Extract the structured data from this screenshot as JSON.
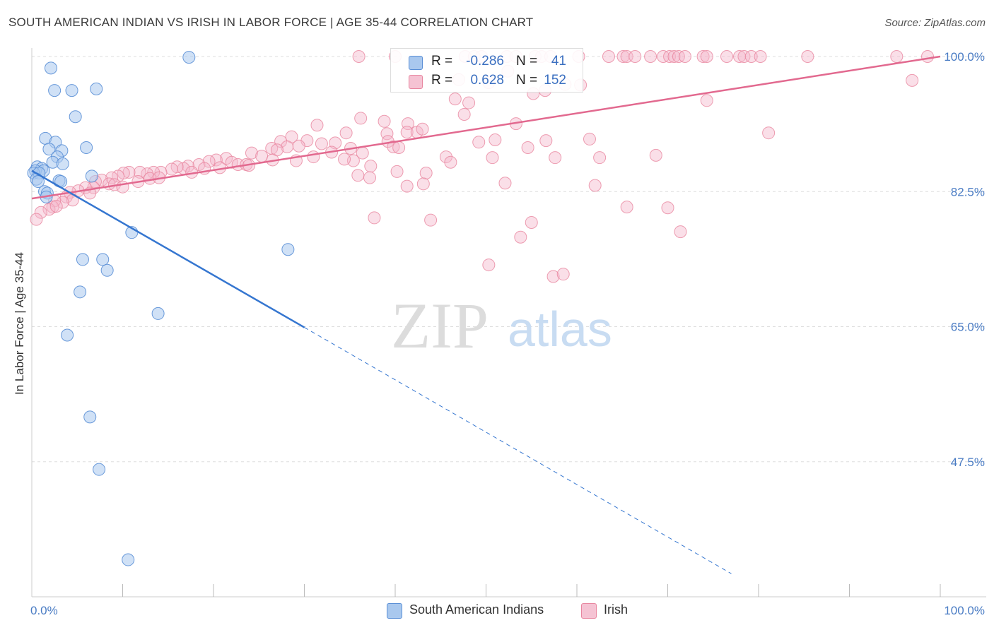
{
  "title": "SOUTH AMERICAN INDIAN VS IRISH IN LABOR FORCE | AGE 35-44 CORRELATION CHART",
  "source": "Source: ZipAtlas.com",
  "watermark": {
    "zip": "ZIP",
    "atlas": "atlas"
  },
  "legend": {
    "rows": [
      {
        "r_label": "R =",
        "r_value": "-0.286",
        "n_label": "N =",
        "n_value": "41"
      },
      {
        "r_label": "R =",
        "r_value": "0.628",
        "n_label": "N =",
        "n_value": "152"
      }
    ]
  },
  "bottom_legend": [
    "South American Indians",
    "Irish"
  ],
  "colors": {
    "blue_fill": "#a9c8ee",
    "blue_stroke": "#5a8fd6",
    "blue_line": "#3576d0",
    "pink_fill": "#f5b8cb",
    "pink_stroke": "#e8869f",
    "pink_line": "#e2698f",
    "tick_text": "#4a7cc4",
    "grid": "#dedede"
  },
  "chart_data": {
    "type": "scatter",
    "title": "SOUTH AMERICAN INDIAN VS IRISH IN LABOR FORCE | AGE 35-44 CORRELATION CHART",
    "xlabel": "",
    "ylabel": "In Labor Force | Age 35-44",
    "xlim": [
      0,
      100
    ],
    "ylim": [
      30,
      100
    ],
    "x_tick_labels": [
      "0.0%",
      "100.0%"
    ],
    "y_ticks": [
      47.5,
      65.0,
      82.5,
      100.0
    ],
    "y_tick_labels": [
      "47.5%",
      "65.0%",
      "82.5%",
      "100.0%"
    ],
    "grid": true,
    "series": [
      {
        "name": "South American Indians",
        "r": -0.286,
        "n": 41,
        "trend": {
          "x_start": 0,
          "y_start": 85.2,
          "x_solid_end": 30,
          "y_solid_end": 64.9,
          "x_dash_end": 77,
          "y_dash_end": 33.0
        },
        "points": [
          [
            17.3,
            99.9
          ],
          [
            2.1,
            98.5
          ],
          [
            2.5,
            95.6
          ],
          [
            4.4,
            95.6
          ],
          [
            7.1,
            95.8
          ],
          [
            4.8,
            92.2
          ],
          [
            1.5,
            89.4
          ],
          [
            2.6,
            88.9
          ],
          [
            1.9,
            88.0
          ],
          [
            3.3,
            87.8
          ],
          [
            6.0,
            88.2
          ],
          [
            2.8,
            87.0
          ],
          [
            2.3,
            86.3
          ],
          [
            3.4,
            86.1
          ],
          [
            0.6,
            85.7
          ],
          [
            1.1,
            85.5
          ],
          [
            0.4,
            85.2
          ],
          [
            1.3,
            85.2
          ],
          [
            0.2,
            84.9
          ],
          [
            0.8,
            84.9
          ],
          [
            0.5,
            84.1
          ],
          [
            0.7,
            83.8
          ],
          [
            3.0,
            83.9
          ],
          [
            3.2,
            83.8
          ],
          [
            6.6,
            84.5
          ],
          [
            1.4,
            82.5
          ],
          [
            1.7,
            82.3
          ],
          [
            1.6,
            81.8
          ],
          [
            11.0,
            77.2
          ],
          [
            28.2,
            75.0
          ],
          [
            5.6,
            73.7
          ],
          [
            7.8,
            73.7
          ],
          [
            8.3,
            72.3
          ],
          [
            5.3,
            69.5
          ],
          [
            13.9,
            66.7
          ],
          [
            3.9,
            63.9
          ],
          [
            6.4,
            53.3
          ],
          [
            7.4,
            46.5
          ],
          [
            10.6,
            34.8
          ]
        ]
      },
      {
        "name": "Irish",
        "r": 0.628,
        "n": 152,
        "trend": {
          "x_start": 0,
          "y_start": 81.6,
          "x_end": 100,
          "y_end": 100.0
        },
        "points": [
          [
            36,
            100
          ],
          [
            40,
            100
          ],
          [
            47.7,
            100
          ],
          [
            48.7,
            100
          ],
          [
            49.5,
            100
          ],
          [
            52.3,
            100
          ],
          [
            53.3,
            100
          ],
          [
            55.4,
            100
          ],
          [
            56.1,
            100
          ],
          [
            57.1,
            100
          ],
          [
            60.2,
            100
          ],
          [
            63.5,
            100
          ],
          [
            65.1,
            100
          ],
          [
            65.5,
            100
          ],
          [
            66.4,
            100
          ],
          [
            68.1,
            100
          ],
          [
            69.5,
            100
          ],
          [
            70.2,
            100
          ],
          [
            70.7,
            100
          ],
          [
            71.2,
            100
          ],
          [
            71.9,
            100
          ],
          [
            73.9,
            100
          ],
          [
            74.3,
            100
          ],
          [
            76.5,
            100
          ],
          [
            77.9,
            100
          ],
          [
            78.4,
            100
          ],
          [
            79.2,
            100
          ],
          [
            80.2,
            100
          ],
          [
            85.4,
            100
          ],
          [
            95.2,
            100
          ],
          [
            98.6,
            100
          ],
          [
            52.4,
            98.1
          ],
          [
            47.0,
            97.0
          ],
          [
            50.3,
            96.6
          ],
          [
            58.7,
            96.4
          ],
          [
            56.5,
            95.6
          ],
          [
            60.4,
            96.3
          ],
          [
            96.9,
            96.9
          ],
          [
            55.2,
            95.2
          ],
          [
            46.6,
            94.5
          ],
          [
            48.1,
            94.0
          ],
          [
            74.3,
            94.3
          ],
          [
            47.6,
            92.5
          ],
          [
            53.3,
            91.3
          ],
          [
            36.2,
            92.0
          ],
          [
            38.8,
            91.6
          ],
          [
            41.4,
            91.3
          ],
          [
            31.4,
            91.1
          ],
          [
            34.6,
            90.1
          ],
          [
            39.1,
            90.0
          ],
          [
            41.3,
            90.2
          ],
          [
            42.4,
            90.2
          ],
          [
            43.0,
            90.6
          ],
          [
            81.1,
            90.1
          ],
          [
            28.6,
            89.6
          ],
          [
            30.3,
            89.1
          ],
          [
            31.9,
            88.7
          ],
          [
            33.4,
            88.8
          ],
          [
            39.2,
            89.0
          ],
          [
            39.8,
            88.3
          ],
          [
            51.0,
            89.2
          ],
          [
            49.2,
            88.9
          ],
          [
            56.6,
            89.1
          ],
          [
            61.4,
            89.3
          ],
          [
            27.4,
            89.0
          ],
          [
            28.1,
            88.3
          ],
          [
            29.4,
            88.4
          ],
          [
            35.1,
            88.1
          ],
          [
            40.4,
            88.2
          ],
          [
            54.6,
            88.2
          ],
          [
            26.4,
            88.1
          ],
          [
            27.0,
            87.9
          ],
          [
            31.0,
            87.0
          ],
          [
            33.0,
            87.6
          ],
          [
            36.4,
            87.5
          ],
          [
            35.4,
            86.5
          ],
          [
            45.6,
            87.0
          ],
          [
            50.7,
            86.9
          ],
          [
            57.6,
            86.9
          ],
          [
            62.5,
            86.9
          ],
          [
            68.7,
            87.2
          ],
          [
            24.2,
            87.5
          ],
          [
            25.3,
            87.1
          ],
          [
            21.4,
            86.8
          ],
          [
            20.3,
            86.6
          ],
          [
            19.5,
            86.4
          ],
          [
            22.0,
            86.3
          ],
          [
            22.7,
            86.0
          ],
          [
            23.6,
            86.0
          ],
          [
            18.4,
            86.0
          ],
          [
            17.2,
            85.8
          ],
          [
            16.7,
            85.5
          ],
          [
            16.0,
            85.7
          ],
          [
            15.4,
            85.4
          ],
          [
            14.2,
            85.0
          ],
          [
            13.4,
            85.0
          ],
          [
            12.7,
            84.8
          ],
          [
            11.9,
            85.0
          ],
          [
            13.0,
            84.2
          ],
          [
            10.7,
            85.0
          ],
          [
            10.1,
            84.9
          ],
          [
            9.5,
            84.5
          ],
          [
            8.8,
            84.3
          ],
          [
            7.7,
            84.0
          ],
          [
            7.0,
            83.8
          ],
          [
            6.8,
            83.0
          ],
          [
            8.5,
            83.5
          ],
          [
            9.1,
            83.4
          ],
          [
            10.0,
            83.1
          ],
          [
            11.7,
            83.8
          ],
          [
            14.0,
            84.3
          ],
          [
            17.6,
            85.0
          ],
          [
            19.0,
            85.5
          ],
          [
            20.7,
            85.6
          ],
          [
            23.9,
            85.9
          ],
          [
            26.5,
            86.6
          ],
          [
            29.1,
            86.5
          ],
          [
            34.4,
            86.7
          ],
          [
            37.3,
            85.8
          ],
          [
            40.2,
            85.1
          ],
          [
            43.4,
            84.9
          ],
          [
            46.1,
            86.3
          ],
          [
            35.9,
            84.6
          ],
          [
            37.2,
            84.3
          ],
          [
            41.3,
            83.2
          ],
          [
            43.1,
            83.5
          ],
          [
            52.1,
            83.6
          ],
          [
            5.9,
            83.0
          ],
          [
            6.4,
            82.3
          ],
          [
            5.1,
            82.6
          ],
          [
            4.2,
            82.4
          ],
          [
            3.8,
            81.8
          ],
          [
            4.5,
            81.4
          ],
          [
            3.4,
            81.1
          ],
          [
            2.5,
            81.3
          ],
          [
            2.3,
            80.5
          ],
          [
            1.9,
            80.2
          ],
          [
            2.7,
            80.6
          ],
          [
            1.0,
            79.8
          ],
          [
            0.5,
            78.9
          ],
          [
            62.0,
            83.3
          ],
          [
            65.5,
            80.5
          ],
          [
            70.0,
            80.4
          ],
          [
            37.7,
            79.1
          ],
          [
            43.9,
            78.8
          ],
          [
            55.0,
            78.5
          ],
          [
            71.4,
            77.3
          ],
          [
            53.8,
            76.6
          ],
          [
            50.3,
            73.0
          ],
          [
            57.4,
            71.5
          ],
          [
            58.5,
            71.8
          ]
        ]
      }
    ]
  }
}
